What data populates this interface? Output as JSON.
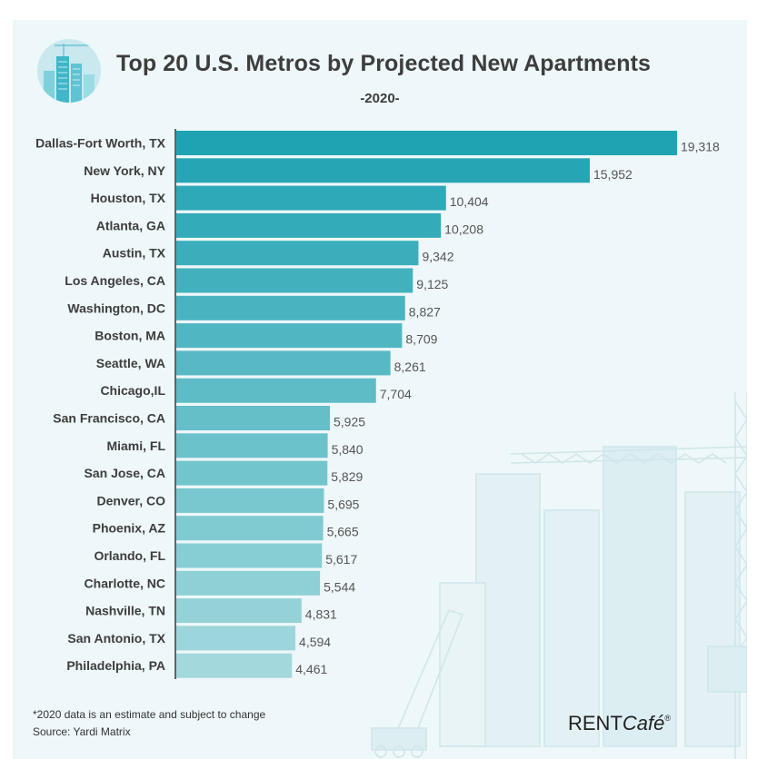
{
  "header": {
    "title": "Top 20 U.S. Metros by Projected New Apartments",
    "subtitle": "-2020-"
  },
  "footer": {
    "note": "*2020 data is an estimate and subject to change",
    "source": "Source: Yardi Matrix",
    "brand_main": "RENT",
    "brand_script": "Café",
    "brand_mark": "®"
  },
  "chart_data": {
    "type": "bar",
    "orientation": "horizontal",
    "title": "Top 20 U.S. Metros by Projected New Apartments",
    "subtitle": "-2020-",
    "xlabel": "",
    "ylabel": "",
    "grid": false,
    "categories": [
      "Dallas-Fort Worth, TX",
      "New York, NY",
      "Houston, TX",
      "Atlanta, GA",
      "Austin, TX",
      "Los Angeles, CA",
      "Washington, DC",
      "Boston, MA",
      "Seattle, WA",
      "Chicago,IL",
      "San Francisco, CA",
      "Miami, FL",
      "San Jose, CA",
      "Denver, CO",
      "Phoenix, AZ",
      "Orlando, FL",
      "Charlotte, NC",
      "Nashville, TN",
      "San Antonio, TX",
      "Philadelphia, PA"
    ],
    "values": [
      19318,
      15952,
      10404,
      10208,
      9342,
      9125,
      8827,
      8709,
      8261,
      7704,
      5925,
      5840,
      5829,
      5695,
      5665,
      5617,
      5544,
      4831,
      4594,
      4461
    ],
    "value_labels": [
      "19,318",
      "15,952",
      "10,404",
      "10,208",
      "9,342",
      "9,125",
      "8,827",
      "8,709",
      "8,261",
      "7,704",
      "5,925",
      "5,840",
      "5,829",
      "5,695",
      "5,665",
      "5,617",
      "5,544",
      "4,831",
      "4,594",
      "4,461"
    ],
    "xlim": [
      0,
      19318
    ],
    "colors": {
      "top": "#1fa3b2",
      "bottom": "#a3d8dd",
      "axis": "#333333",
      "label": "#3d3d3d",
      "value": "#555555"
    }
  }
}
